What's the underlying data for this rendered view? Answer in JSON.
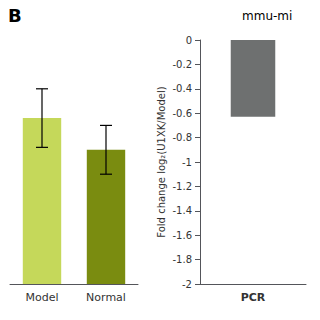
{
  "chart_data": [
    {
      "type": "bar",
      "categories": [
        "Model",
        "Normal"
      ],
      "values": [
        0.68,
        0.55
      ],
      "errors": [
        0.12,
        0.1
      ],
      "colors": [
        "#c5d85a",
        "#7a8c10"
      ],
      "ylim": [
        0,
        1.0
      ],
      "tick_labels": "x",
      "grid": false
    },
    {
      "type": "bar",
      "categories": [
        "PCR"
      ],
      "values": [
        -0.63
      ],
      "color": "#6e7070",
      "ylabel": "Fold change log₂(U1XK/Model)",
      "ylim": [
        -2.0,
        0
      ],
      "yticks": [
        0,
        -0.2,
        -0.4,
        -0.6,
        -0.8,
        -1,
        -1.2,
        -1.4,
        -1.6,
        -1.8,
        -2
      ],
      "grid": false,
      "annotations": [
        "B",
        "mmu-mi"
      ]
    }
  ]
}
